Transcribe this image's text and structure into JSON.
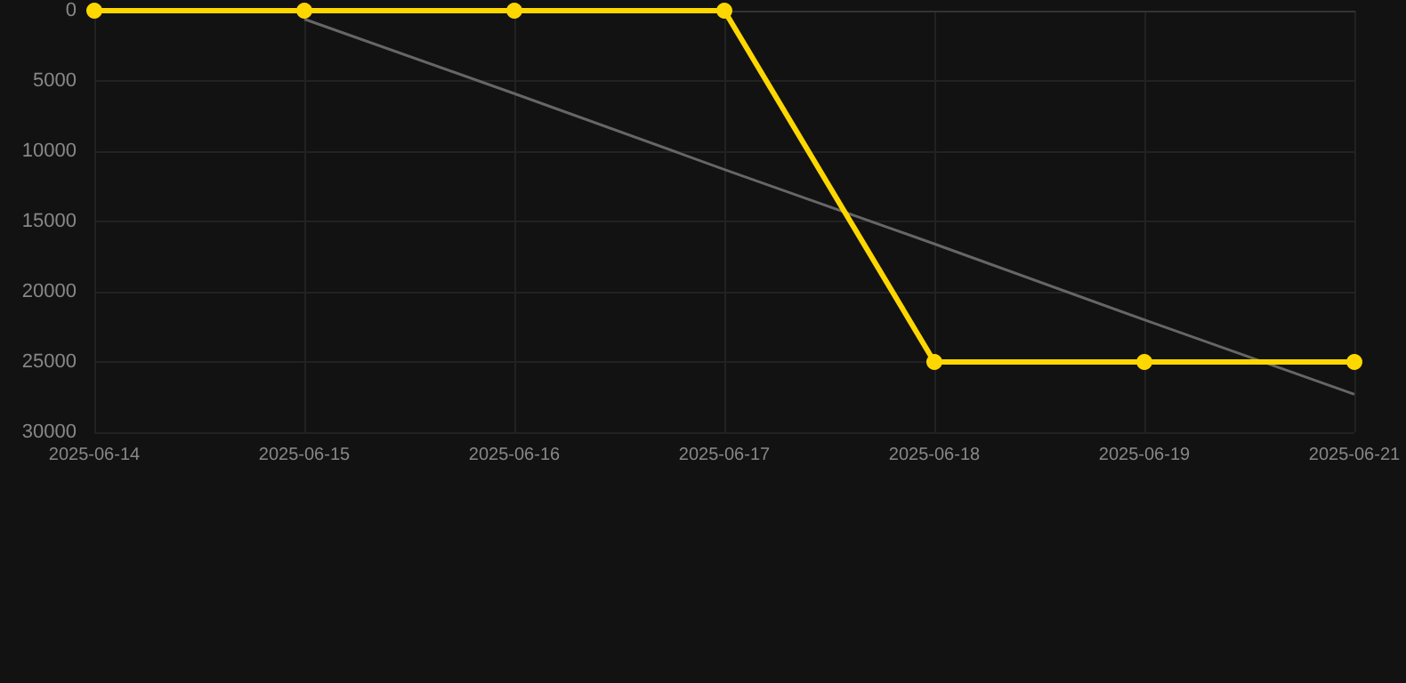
{
  "chart_data": {
    "type": "line",
    "categories": [
      "2025-06-14",
      "2025-06-15",
      "2025-06-16",
      "2025-06-17",
      "2025-06-18",
      "2025-06-19",
      "2025-06-21"
    ],
    "series": [
      {
        "color": "#ffd700",
        "values": [
          0,
          0,
          0,
          0,
          25000,
          25000,
          25000
        ],
        "marker": "circle"
      },
      {
        "type": "line",
        "color": "#666666",
        "values": [
          null,
          600,
          5900,
          11300,
          16600,
          22000,
          27300
        ],
        "marker": "none"
      }
    ],
    "ylim": [
      30000,
      0
    ],
    "yticks": [
      0,
      5000,
      10000,
      15000,
      20000,
      25000,
      30000
    ],
    "grid": true
  }
}
